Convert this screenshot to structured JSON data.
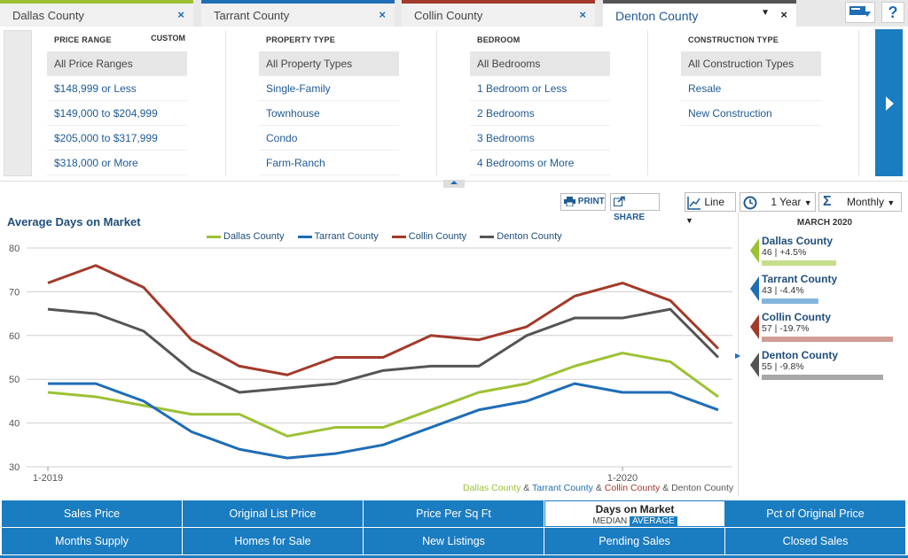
{
  "tabs": [
    {
      "label": "Dallas County",
      "color": "#9dc134"
    },
    {
      "label": "Tarrant County",
      "color": "#1f6db5"
    },
    {
      "label": "Collin County",
      "color": "#a23a2a"
    },
    {
      "label": "Denton County",
      "color": "#555555"
    }
  ],
  "close_glyph": "×",
  "dropdown_glyph": "▼",
  "help_glyph": "?",
  "filters": {
    "price": {
      "header": "PRICE RANGE",
      "custom": "CUSTOM",
      "items": [
        "All Price Ranges",
        "$148,999 or Less",
        "$149,000 to $204,999",
        "$205,000 to $317,999",
        "$318,000 or More"
      ]
    },
    "property": {
      "header": "PROPERTY TYPE",
      "items": [
        "All Property Types",
        "Single-Family",
        "Townhouse",
        "Condo",
        "Farm-Ranch"
      ]
    },
    "bedroom": {
      "header": "BEDROOM",
      "items": [
        "All Bedrooms",
        "1 Bedroom or Less",
        "2 Bedrooms",
        "3 Bedrooms",
        "4 Bedrooms or More"
      ]
    },
    "construction": {
      "header": "CONSTRUCTION TYPE",
      "items": [
        "All Construction Types",
        "Resale",
        "New Construction"
      ]
    }
  },
  "controls": {
    "print": "PRINT",
    "share": "SHARE",
    "chart_type": "Line",
    "period": "1 Year",
    "interval": "Monthly"
  },
  "chart_data": {
    "type": "line",
    "title": "Average Days on Market",
    "xlabel": "",
    "ylabel": "",
    "ylim": [
      30,
      80
    ],
    "yticks": [
      30,
      40,
      50,
      60,
      70,
      80
    ],
    "x_tick_labels": [
      "1-2019",
      "1-2020"
    ],
    "x_tick_index": [
      0,
      12
    ],
    "series": [
      {
        "name": "Dallas County",
        "color": "#9dc134",
        "values": [
          47,
          46,
          44,
          42,
          42,
          37,
          39,
          39,
          43,
          47,
          49,
          53,
          56,
          54,
          46
        ]
      },
      {
        "name": "Tarrant County",
        "color": "#1f6db5",
        "values": [
          49,
          49,
          45,
          38,
          34,
          32,
          33,
          35,
          39,
          43,
          45,
          49,
          47,
          47,
          43
        ]
      },
      {
        "name": "Collin County",
        "color": "#a23a2a",
        "values": [
          72,
          76,
          71,
          59,
          53,
          51,
          55,
          55,
          60,
          59,
          62,
          69,
          72,
          68,
          57
        ]
      },
      {
        "name": "Denton County",
        "color": "#555555",
        "values": [
          66,
          65,
          61,
          52,
          47,
          48,
          49,
          52,
          53,
          53,
          60,
          64,
          64,
          66,
          55
        ]
      }
    ],
    "source_line": {
      "parts": [
        "Dallas County",
        "&",
        "Tarrant County",
        "&",
        "Collin County",
        "&",
        "Denton County"
      ]
    }
  },
  "right_panel": {
    "date": "MARCH 2020",
    "items": [
      {
        "name": "Dallas County",
        "stats": "46 | +4.5%",
        "color": "#9dc134",
        "bar_color": "#c6dd8a",
        "value": 46
      },
      {
        "name": "Tarrant County",
        "stats": "43 | -4.4%",
        "color": "#1f6db5",
        "bar_color": "#86b5dc",
        "value": 43
      },
      {
        "name": "Collin County",
        "stats": "57 | -19.7%",
        "color": "#a23a2a",
        "bar_color": "#d19e96",
        "value": 57
      },
      {
        "name": "Denton County",
        "stats": "55 | -9.8%",
        "color": "#555555",
        "bar_color": "#a7a7a7",
        "value": 55
      }
    ]
  },
  "metrics_row1": [
    "Sales Price",
    "Original List Price",
    "Price Per Sq Ft",
    "Days on Market",
    "Pct of Original Price"
  ],
  "metrics_row2": [
    "Months Supply",
    "Homes for Sale",
    "New Listings",
    "Pending Sales",
    "Closed Sales"
  ],
  "active_sub": {
    "median": "MEDIAN",
    "average": "AVERAGE"
  }
}
